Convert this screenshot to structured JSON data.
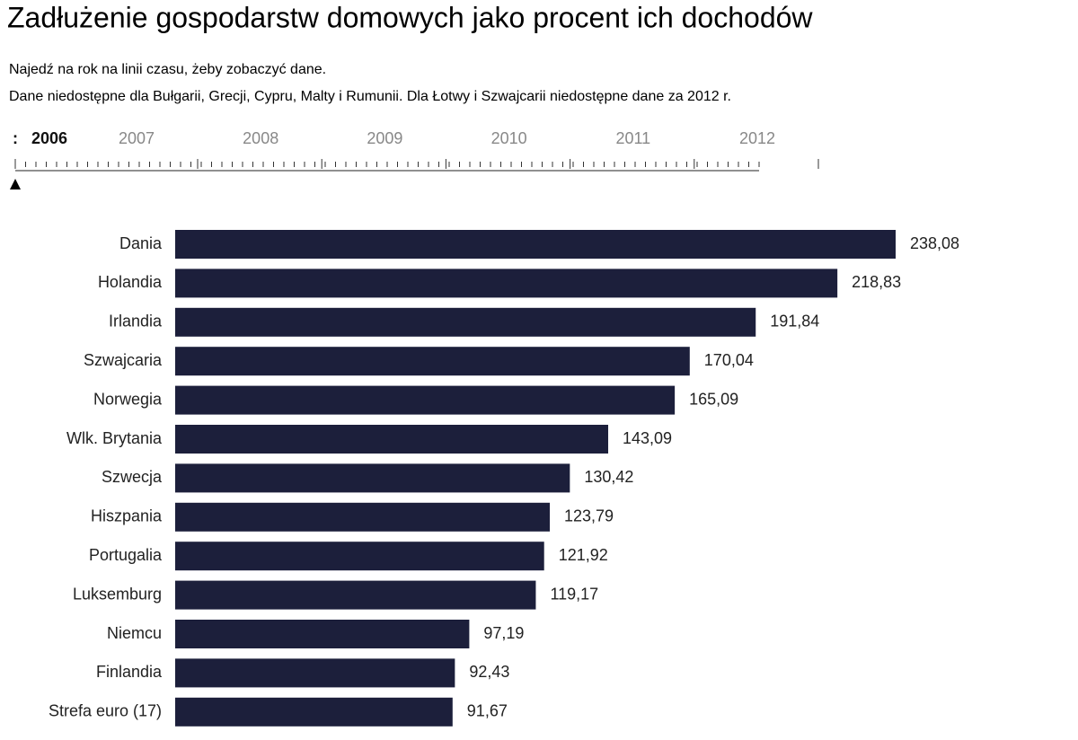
{
  "header": {
    "title": "Zadłużenie gospodarstw domowych jako procent ich dochodów",
    "notes": [
      "Najedź na rok na linii czasu, żeby zobaczyć dane.",
      "Dane niedostępne dla Bułgarii, Grecji, Cypru, Malty i Rumunii. Dla Łotwy i Szwajcarii niedostępne dane za 2012 r."
    ]
  },
  "timeline": {
    "years": [
      "2006",
      "2007",
      "2008",
      "2009",
      "2010",
      "2011",
      "2012"
    ],
    "selected": 0
  },
  "chart_data": {
    "type": "hbar",
    "color": "#1c1f3b",
    "categories": [
      "Dania",
      "Holandia",
      "Irlandia",
      "Szwajcaria",
      "Norwegia",
      "Wlk. Brytania",
      "Szwecja",
      "Hiszpania",
      "Portugalia",
      "Luksemburg",
      "Niemcu",
      "Finlandia",
      "Strefa euro (17)"
    ],
    "values": [
      238.08,
      218.83,
      191.84,
      170.04,
      165.09,
      143.09,
      130.42,
      123.79,
      121.92,
      119.17,
      97.19,
      92.43,
      91.67
    ],
    "value_labels": [
      "238,08",
      "218,83",
      "191,84",
      "170,04",
      "165,09",
      "143,09",
      "130,42",
      "123,79",
      "121,92",
      "119,17",
      "97,19",
      "92,43",
      "91,67"
    ]
  }
}
